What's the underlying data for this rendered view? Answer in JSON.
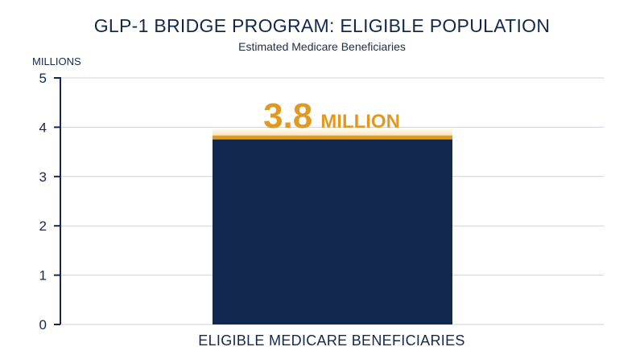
{
  "chart_data": {
    "type": "bar",
    "title": "GLP-1 BRIDGE PROGRAM: ELIGIBLE POPULATION",
    "subtitle": "Estimated Medicare Beneficiaries",
    "ylabel": "MILLIONS",
    "xlabel": "",
    "categories": [
      "ELIGIBLE MEDICARE BENEFICIARIES"
    ],
    "values": [
      3.8
    ],
    "value_label_number": "3.8",
    "value_label_unit": "MILLION",
    "ylim": [
      0,
      5
    ],
    "yticks": [
      "0",
      "1",
      "2",
      "3",
      "4",
      "5"
    ],
    "grid": true,
    "legend": "none"
  },
  "colors": {
    "bar": "#13284f",
    "accent": "#e09a24",
    "text": "#13284f"
  }
}
